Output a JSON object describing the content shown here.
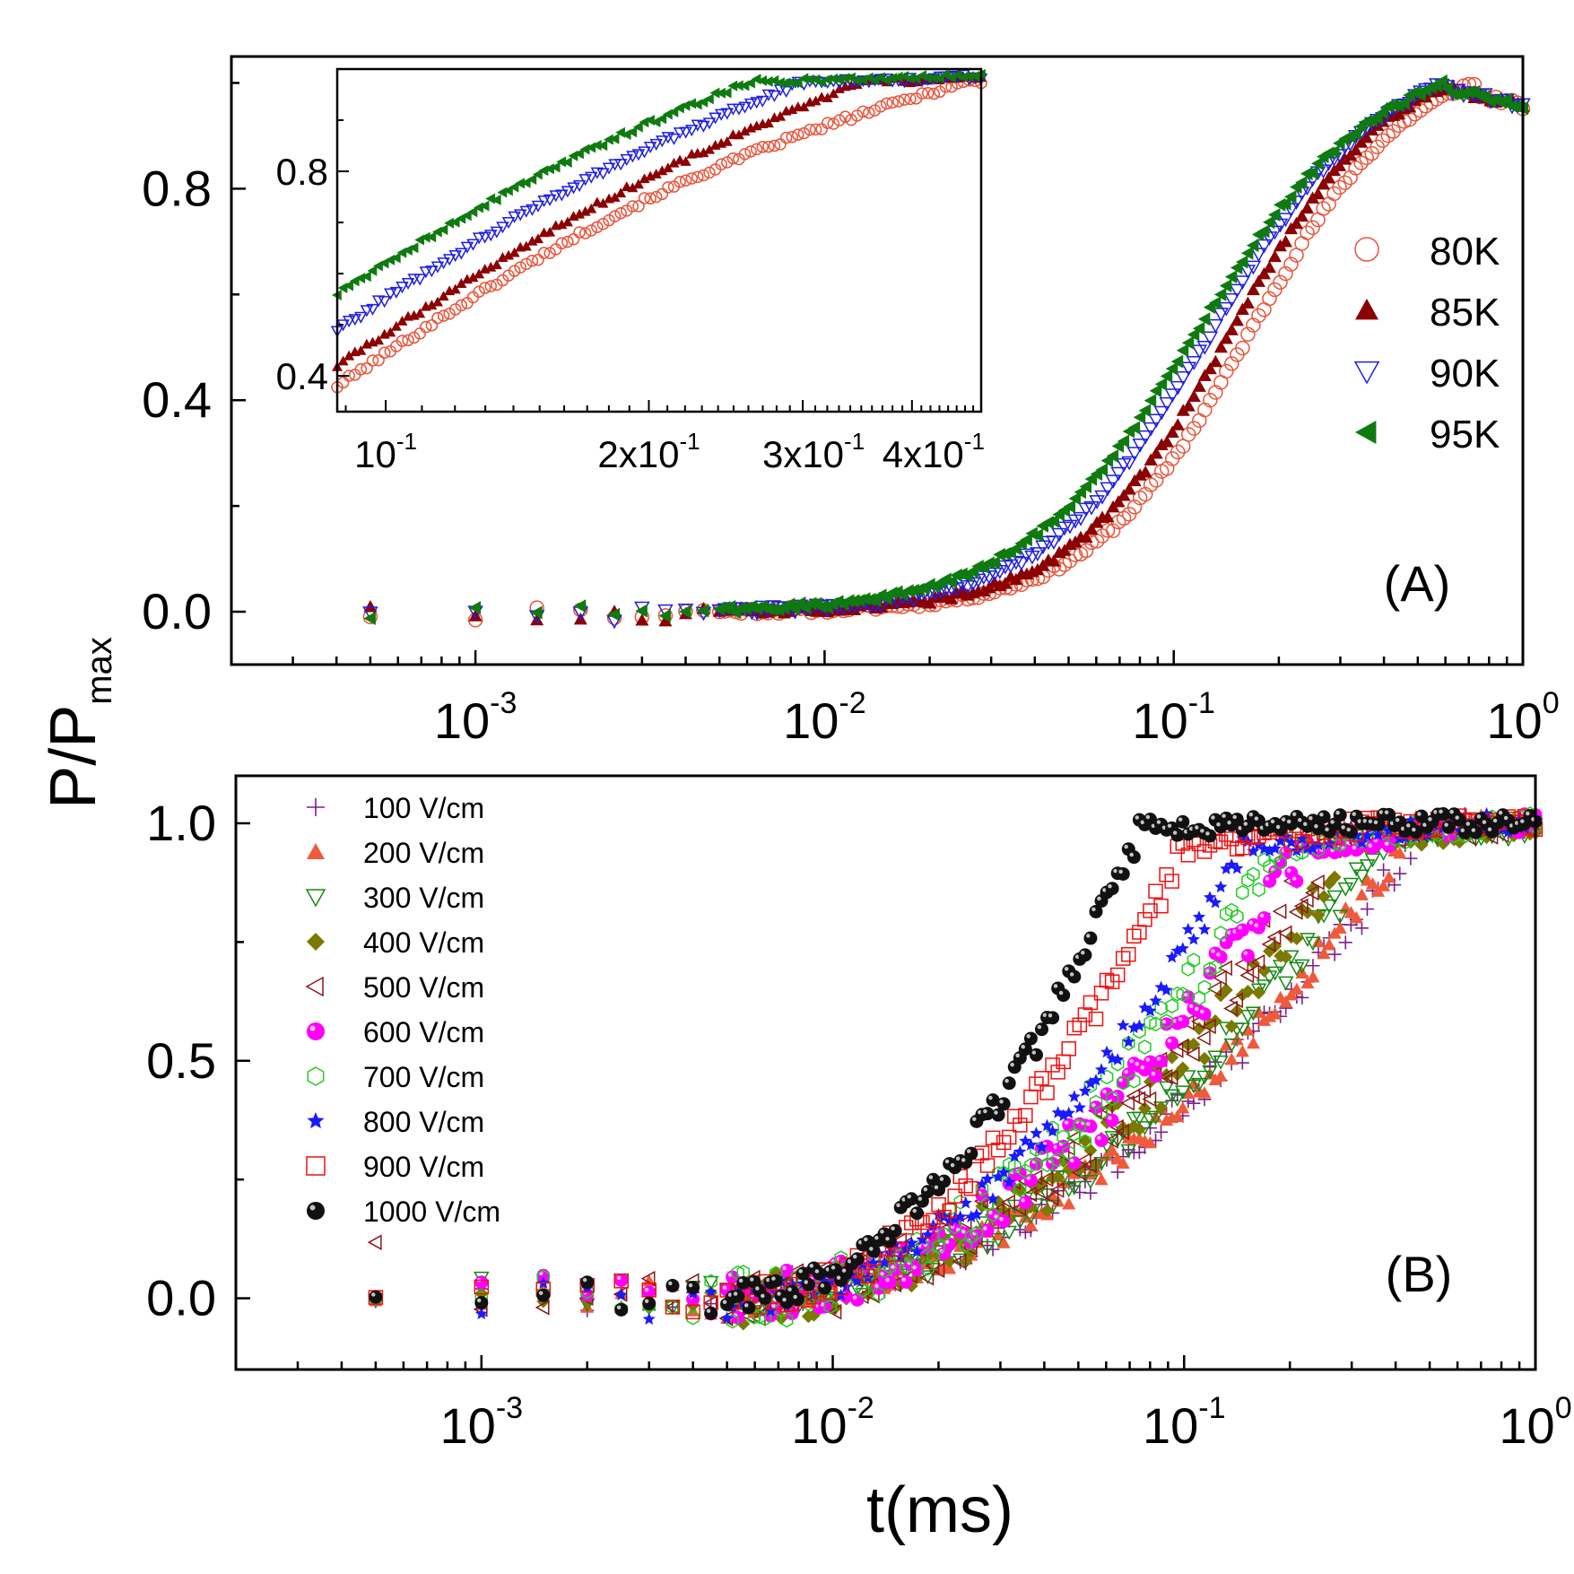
{
  "figure": {
    "ylabel_main": "P/P",
    "ylabel_sub": "max",
    "xlabel": "t(ms)"
  },
  "chart_data": [
    {
      "panel": "A",
      "type": "scatter",
      "title": "",
      "panel_label": "(A)",
      "xlabel": "t(ms)",
      "ylabel": "P/Pmax",
      "xscale": "log",
      "xlim": [
        0.0002,
        1.0
      ],
      "ylim": [
        -0.1,
        1.05
      ],
      "yticks": [
        0.0,
        0.4,
        0.8
      ],
      "ytick_labels": [
        "0.0",
        "0.4",
        "0.8"
      ],
      "xticks": [
        0.001,
        0.01,
        0.1,
        1
      ],
      "xtick_labels": [
        {
          "base": "10",
          "exp": "-3"
        },
        {
          "base": "10",
          "exp": "-2"
        },
        {
          "base": "10",
          "exp": "-1"
        },
        {
          "base": "10",
          "exp": "0"
        }
      ],
      "legend_position": "right",
      "model": {
        "t0": 0.0009,
        "early_value": 0.0,
        "peak": 1.0,
        "end_value": 0.96
      },
      "series": [
        {
          "name": "80K",
          "marker": "circle-open",
          "color": "#e8543a",
          "tau": 0.165,
          "n": 1.9
        },
        {
          "name": "85K",
          "marker": "triangle-up",
          "color": "#8b0000",
          "tau": 0.145,
          "n": 1.9
        },
        {
          "name": "90K",
          "marker": "triangle-down-open",
          "color": "#1f1fe0",
          "tau": 0.128,
          "n": 1.8
        },
        {
          "name": "95K",
          "marker": "triangle-left",
          "color": "#0f7a0f",
          "tau": 0.115,
          "n": 1.7
        }
      ]
    },
    {
      "panel": "A-inset",
      "type": "scatter",
      "xscale": "log",
      "xlim": [
        0.088,
        0.48
      ],
      "ylim": [
        0.33,
        1.0
      ],
      "yticks": [
        0.4,
        0.8
      ],
      "ytick_labels": [
        "0.4",
        "0.8"
      ],
      "xticks": [
        0.1,
        0.2,
        0.3,
        0.4
      ],
      "xtick_labels": [
        {
          "base": "10",
          "exp": "-1"
        },
        {
          "base": "2x10",
          "exp": "-1"
        },
        {
          "base": "3x10",
          "exp": "-1"
        },
        {
          "base": "4x10",
          "exp": "-1"
        }
      ],
      "series": [
        {
          "name": "80K",
          "start": 0.38,
          "tsat": 0.46
        },
        {
          "name": "85K",
          "start": 0.42,
          "tsat": 0.35
        },
        {
          "name": "90K",
          "start": 0.49,
          "tsat": 0.3
        },
        {
          "name": "95K",
          "start": 0.56,
          "tsat": 0.26
        }
      ]
    },
    {
      "panel": "B",
      "type": "scatter",
      "title": "",
      "panel_label": "(B)",
      "xlabel": "t(ms)",
      "ylabel": "P/Pmax",
      "xscale": "log",
      "xlim": [
        0.0002,
        1.0
      ],
      "ylim": [
        -0.15,
        1.1
      ],
      "yticks": [
        0.0,
        0.5,
        1.0
      ],
      "ytick_labels": [
        "0.0",
        "0.5",
        "1.0"
      ],
      "xticks": [
        0.001,
        0.01,
        0.1,
        1
      ],
      "xtick_labels": [
        {
          "base": "10",
          "exp": "-3"
        },
        {
          "base": "10",
          "exp": "-2"
        },
        {
          "base": "10",
          "exp": "-1"
        },
        {
          "base": "10",
          "exp": "0"
        }
      ],
      "legend_position": "top-left",
      "series": [
        {
          "name": "100 V/cm",
          "marker": "plus",
          "color": "#7b1f8a",
          "tsat": 0.5,
          "knee": 0.4,
          "plateau": 1.0
        },
        {
          "name": "200 V/cm",
          "marker": "triangle-up",
          "color": "#ee5a3a",
          "tsat": 0.47,
          "knee": 0.4,
          "plateau": 1.0
        },
        {
          "name": "300 V/cm",
          "marker": "triangle-down-open",
          "color": "#138a13",
          "tsat": 0.38,
          "knee": 0.4,
          "plateau": 0.97
        },
        {
          "name": "400 V/cm",
          "marker": "diamond",
          "color": "#7a7a00",
          "tsat": 0.3,
          "knee": 0.4,
          "plateau": 0.96
        },
        {
          "name": "500 V/cm",
          "marker": "triangle-left-open",
          "color": "#8b1a1a",
          "tsat": 0.26,
          "knee": 0.4,
          "plateau": 0.96
        },
        {
          "name": "600 V/cm",
          "marker": "sphere",
          "color": "#ff00ff",
          "tsat": 0.22,
          "knee": 0.4,
          "plateau": 0.95
        },
        {
          "name": "700 V/cm",
          "marker": "hexagon-open",
          "color": "#22cc22",
          "tsat": 0.19,
          "knee": 0.4,
          "plateau": 0.95
        },
        {
          "name": "800 V/cm",
          "marker": "star",
          "color": "#1a1aff",
          "tsat": 0.15,
          "knee": 0.42,
          "plateau": 0.95
        },
        {
          "name": "900 V/cm",
          "marker": "square-open",
          "color": "#ee1111",
          "tsat": 0.1,
          "knee": 0.42,
          "plateau": 0.95
        },
        {
          "name": "1000 V/cm",
          "marker": "sphere",
          "color": "#111111",
          "tsat": 0.075,
          "knee": 0.45,
          "plateau": 0.99
        }
      ]
    }
  ]
}
